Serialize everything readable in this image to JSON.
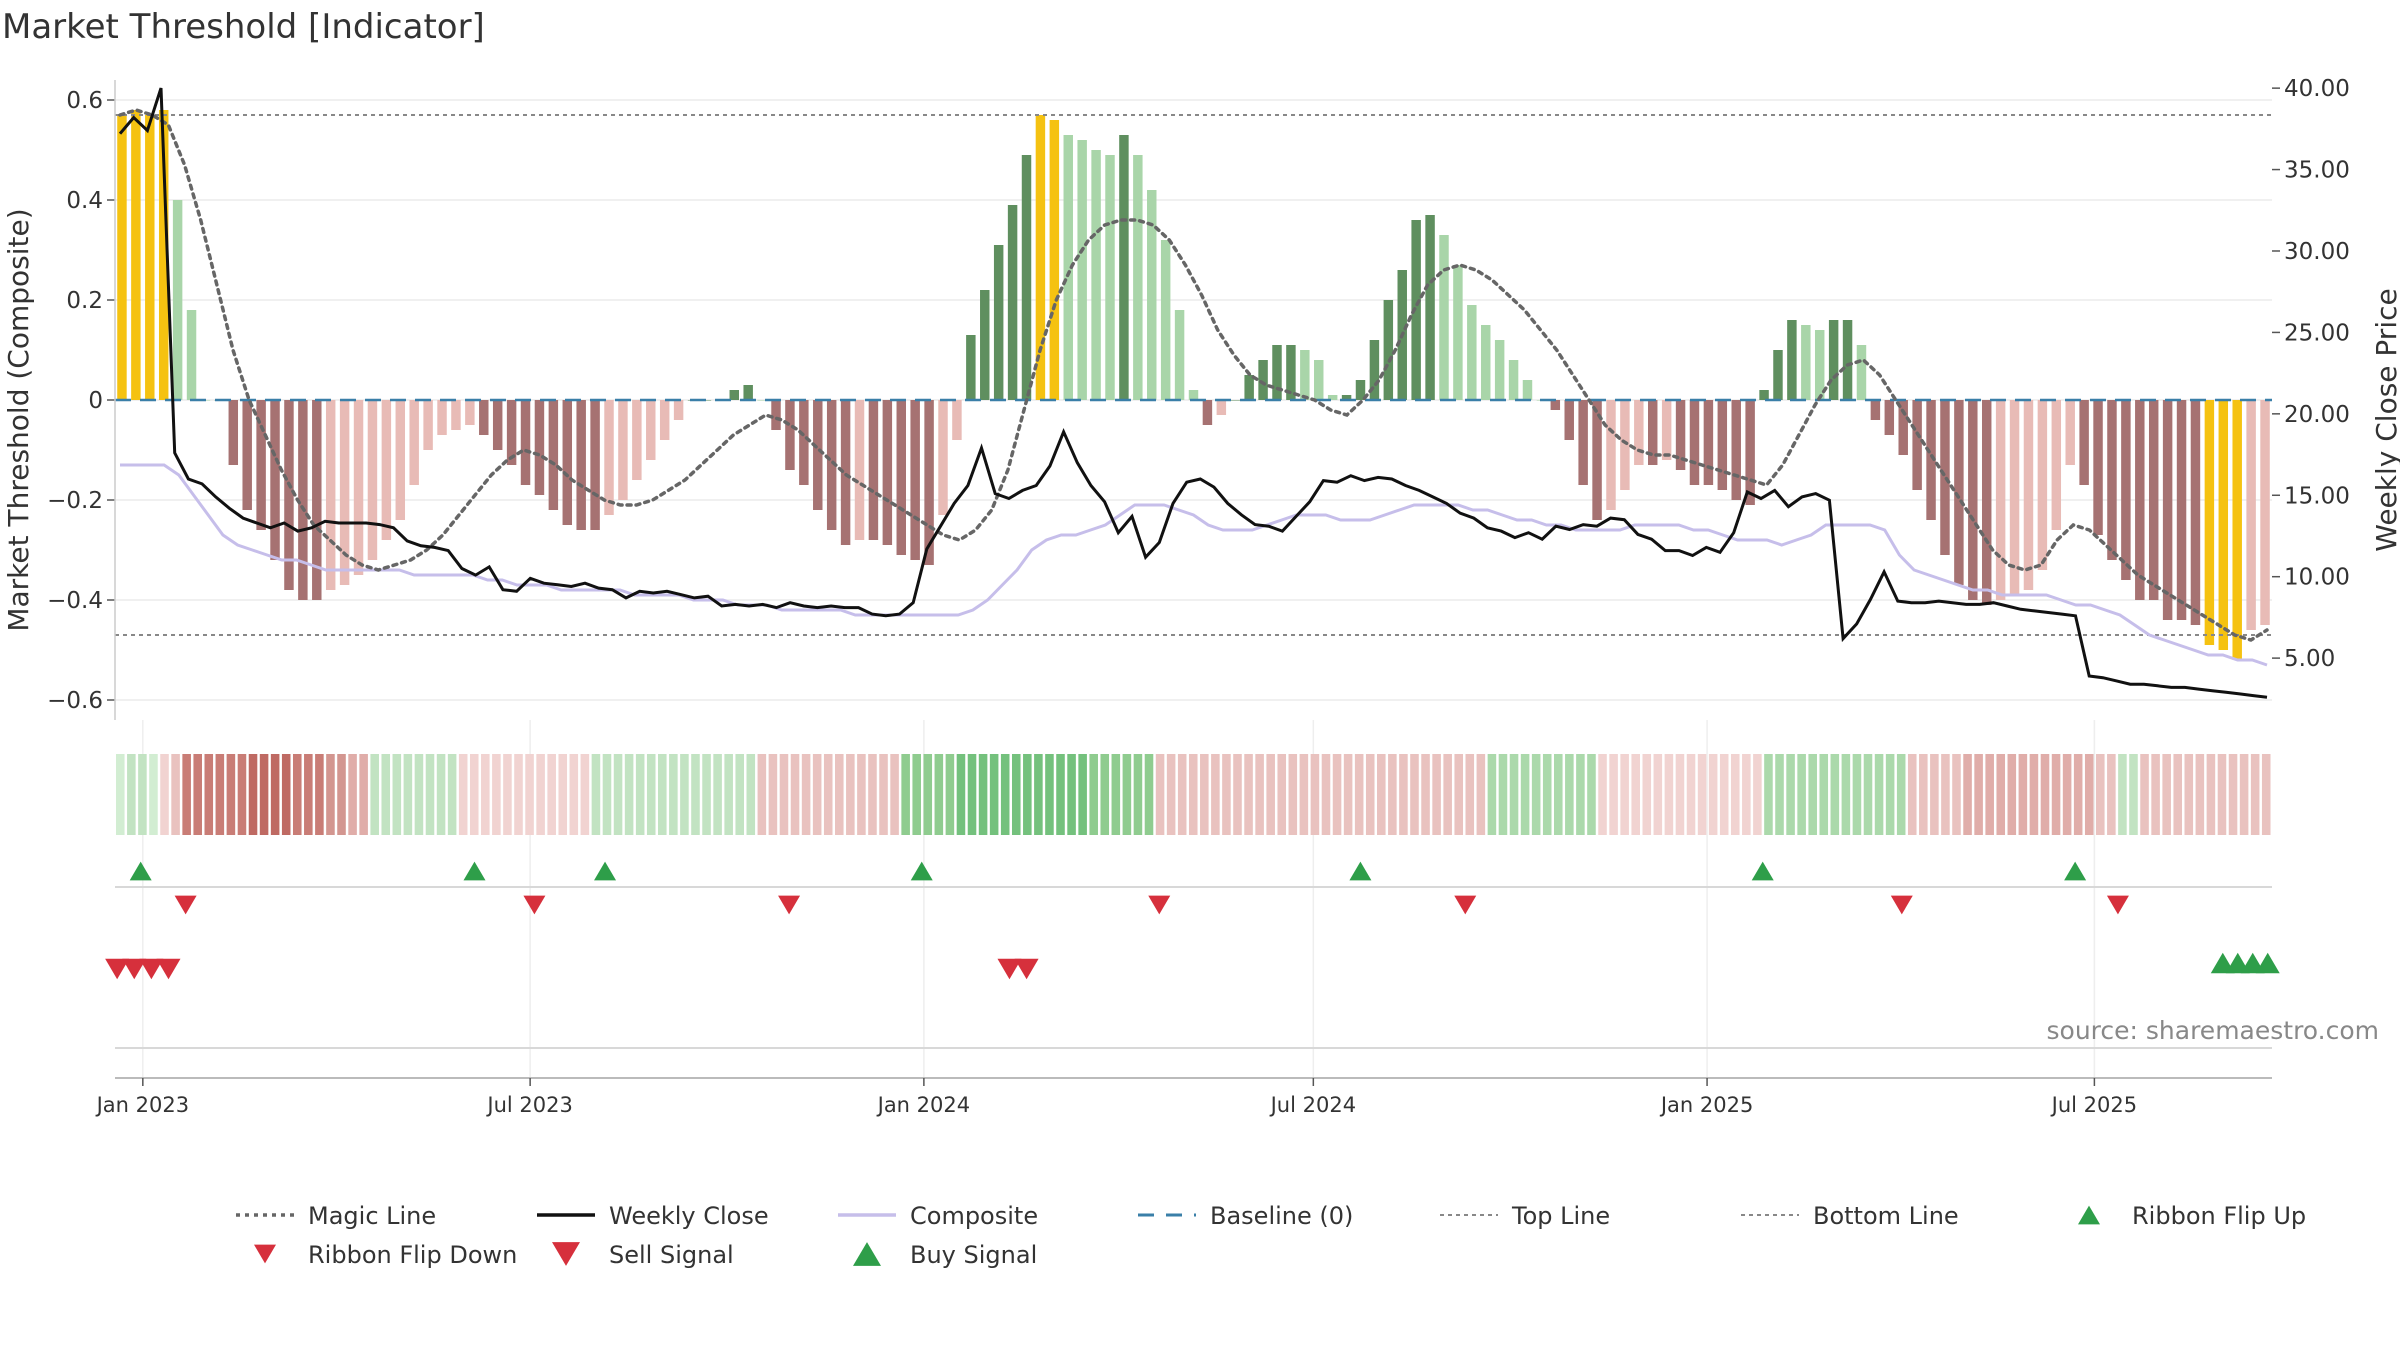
{
  "title": "Market Threshold [Indicator]",
  "source": "source: sharemaestro.com",
  "colors": {
    "extreme": "#F5C211",
    "up_strong": "#5F8F5F",
    "up_weak": "#A9D5A9",
    "down_strong": "#A67272",
    "down_weak": "#E8BBB6",
    "magic": "#666666",
    "close": "#111111",
    "composite": "#C6BEEA",
    "baseline": "#3A7FA8",
    "refline": "#888888",
    "buy": "#2E9E49",
    "sell": "#D6303C"
  },
  "chart_data": {
    "type": "bar",
    "title": "Market Threshold [Indicator]",
    "ylabel_left": "Market Threshold (Composite)",
    "ylabel_right": "Weekly Close Price",
    "ylim_left": [
      -0.64,
      0.64
    ],
    "ylim_right": [
      1.2,
      40.5
    ],
    "yticks_left": [
      "0.6",
      "0.4",
      "0.2",
      "0",
      "−0.2",
      "−0.4",
      "−0.6"
    ],
    "yticks_left_values": [
      0.6,
      0.4,
      0.2,
      0,
      -0.2,
      -0.4,
      -0.6
    ],
    "yticks_right": [
      "40.00",
      "35.00",
      "30.00",
      "25.00",
      "20.00",
      "15.00",
      "10.00",
      "5.00"
    ],
    "yticks_right_values": [
      40,
      35,
      30,
      25,
      20,
      15,
      10,
      5
    ],
    "x_start": "2022-12-19",
    "x_end": "2025-09-22",
    "xticks": [
      {
        "label": "Jan 2023",
        "date": "2023-01-01"
      },
      {
        "label": "Jul 2023",
        "date": "2023-07-01"
      },
      {
        "label": "Jan 2024",
        "date": "2024-01-01"
      },
      {
        "label": "Jul 2024",
        "date": "2024-07-01"
      },
      {
        "label": "Jan 2025",
        "date": "2025-01-01"
      },
      {
        "label": "Jul 2025",
        "date": "2025-07-01"
      }
    ],
    "top_line": 0.57,
    "bottom_line": -0.47,
    "baseline": 0,
    "bar_values": [
      0.57,
      0.58,
      0.57,
      0.58,
      0.4,
      0.18,
      0,
      0,
      -0.13,
      -0.22,
      -0.26,
      -0.32,
      -0.38,
      -0.4,
      -0.4,
      -0.38,
      -0.37,
      -0.35,
      -0.32,
      -0.28,
      -0.24,
      -0.17,
      -0.1,
      -0.07,
      -0.06,
      -0.05,
      -0.07,
      -0.1,
      -0.13,
      -0.17,
      -0.19,
      -0.22,
      -0.25,
      -0.26,
      -0.26,
      -0.23,
      -0.2,
      -0.16,
      -0.12,
      -0.08,
      -0.04,
      0,
      0,
      0,
      0.02,
      0.03,
      0,
      -0.06,
      -0.14,
      -0.17,
      -0.22,
      -0.26,
      -0.29,
      -0.28,
      -0.28,
      -0.29,
      -0.31,
      -0.32,
      -0.33,
      -0.23,
      -0.08,
      0.13,
      0.22,
      0.31,
      0.39,
      0.49,
      0.57,
      0.56,
      0.53,
      0.52,
      0.5,
      0.49,
      0.53,
      0.49,
      0.42,
      0.32,
      0.18,
      0.02,
      -0.05,
      -0.03,
      0,
      0.05,
      0.08,
      0.11,
      0.11,
      0.1,
      0.08,
      0.01,
      0.01,
      0.04,
      0.12,
      0.2,
      0.26,
      0.36,
      0.37,
      0.33,
      0.27,
      0.19,
      0.15,
      0.12,
      0.08,
      0.04,
      0,
      -0.02,
      -0.08,
      -0.17,
      -0.24,
      -0.22,
      -0.18,
      -0.13,
      -0.13,
      -0.12,
      -0.14,
      -0.17,
      -0.17,
      -0.18,
      -0.2,
      -0.21,
      0.02,
      0.1,
      0.16,
      0.15,
      0.14,
      0.16,
      0.16,
      0.11,
      -0.04,
      -0.07,
      -0.11,
      -0.18,
      -0.24,
      -0.31,
      -0.37,
      -0.4,
      -0.41,
      -0.4,
      -0.39,
      -0.38,
      -0.34,
      -0.26,
      -0.13,
      -0.17,
      -0.27,
      -0.32,
      -0.36,
      -0.4,
      -0.4,
      -0.44,
      -0.44,
      -0.45,
      -0.49,
      -0.5,
      -0.52,
      -0.46,
      -0.45
    ],
    "series": [
      {
        "name": "Magic Line",
        "values": [
          0.57,
          0.58,
          0.57,
          0.55,
          0.47,
          0.36,
          0.23,
          0.1,
          0.0,
          -0.07,
          -0.14,
          -0.2,
          -0.25,
          -0.28,
          -0.31,
          -0.33,
          -0.34,
          -0.33,
          -0.32,
          -0.3,
          -0.27,
          -0.23,
          -0.19,
          -0.15,
          -0.12,
          -0.1,
          -0.11,
          -0.13,
          -0.16,
          -0.18,
          -0.2,
          -0.21,
          -0.21,
          -0.2,
          -0.18,
          -0.16,
          -0.13,
          -0.1,
          -0.07,
          -0.05,
          -0.03,
          -0.04,
          -0.06,
          -0.09,
          -0.12,
          -0.15,
          -0.17,
          -0.19,
          -0.21,
          -0.23,
          -0.25,
          -0.27,
          -0.28,
          -0.26,
          -0.22,
          -0.14,
          -0.02,
          0.1,
          0.2,
          0.27,
          0.32,
          0.35,
          0.36,
          0.36,
          0.35,
          0.32,
          0.27,
          0.21,
          0.14,
          0.09,
          0.05,
          0.03,
          0.02,
          0.01,
          0.0,
          -0.02,
          -0.03,
          0.0,
          0.04,
          0.1,
          0.17,
          0.23,
          0.26,
          0.27,
          0.26,
          0.24,
          0.21,
          0.18,
          0.14,
          0.1,
          0.05,
          0.0,
          -0.05,
          -0.08,
          -0.1,
          -0.11,
          -0.11,
          -0.12,
          -0.13,
          -0.14,
          -0.15,
          -0.16,
          -0.17,
          -0.13,
          -0.07,
          -0.01,
          0.04,
          0.07,
          0.08,
          0.05,
          0.0,
          -0.05,
          -0.1,
          -0.15,
          -0.2,
          -0.25,
          -0.3,
          -0.33,
          -0.34,
          -0.33,
          -0.28,
          -0.25,
          -0.26,
          -0.29,
          -0.32,
          -0.35,
          -0.37,
          -0.39,
          -0.41,
          -0.43,
          -0.45,
          -0.47,
          -0.48,
          -0.46
        ]
      },
      {
        "name": "Weekly Close",
        "values": [
          37.2,
          38.2,
          37.4,
          40.0,
          17.6,
          16.0,
          15.7,
          14.9,
          14.2,
          13.6,
          13.3,
          13.0,
          13.3,
          12.8,
          13.0,
          13.4,
          13.3,
          13.3,
          13.3,
          13.2,
          13.0,
          12.2,
          11.9,
          11.8,
          11.6,
          10.5,
          10.1,
          10.6,
          9.2,
          9.1,
          9.9,
          9.6,
          9.5,
          9.4,
          9.6,
          9.3,
          9.2,
          8.7,
          9.1,
          9.0,
          9.1,
          8.9,
          8.7,
          8.8,
          8.2,
          8.3,
          8.2,
          8.3,
          8.1,
          8.4,
          8.2,
          8.1,
          8.2,
          8.1,
          8.1,
          7.7,
          7.6,
          7.7,
          8.4,
          11.7,
          13.1,
          14.5,
          15.6,
          17.9,
          15.1,
          14.8,
          15.3,
          15.6,
          16.8,
          18.9,
          17.0,
          15.6,
          14.6,
          12.7,
          13.7,
          11.2,
          12.1,
          14.5,
          15.8,
          16.0,
          15.5,
          14.5,
          13.8,
          13.2,
          13.1,
          12.8,
          13.7,
          14.6,
          15.9,
          15.8,
          16.2,
          15.9,
          16.1,
          16.0,
          15.6,
          15.3,
          14.9,
          14.5,
          13.9,
          13.6,
          13.0,
          12.8,
          12.4,
          12.7,
          12.3,
          13.1,
          12.9,
          13.2,
          13.1,
          13.6,
          13.5,
          12.6,
          12.3,
          11.6,
          11.6,
          11.3,
          11.8,
          11.5,
          12.7,
          15.2,
          14.8,
          15.3,
          14.3,
          14.9,
          15.1,
          14.7,
          6.2,
          7.1,
          8.6,
          10.3,
          8.5,
          8.4,
          8.4,
          8.5,
          8.4,
          8.3,
          8.3,
          8.4,
          8.2,
          8.0,
          7.9,
          7.8,
          7.7,
          7.6,
          3.9,
          3.8,
          3.6,
          3.4,
          3.4,
          3.3,
          3.2,
          3.2,
          3.1,
          3.0,
          2.9,
          2.8,
          2.7,
          2.6
        ]
      },
      {
        "name": "Composite",
        "values": [
          -0.13,
          -0.13,
          -0.13,
          -0.13,
          -0.15,
          -0.19,
          -0.23,
          -0.27,
          -0.29,
          -0.3,
          -0.31,
          -0.32,
          -0.32,
          -0.33,
          -0.34,
          -0.34,
          -0.34,
          -0.34,
          -0.34,
          -0.34,
          -0.35,
          -0.35,
          -0.35,
          -0.35,
          -0.35,
          -0.36,
          -0.36,
          -0.37,
          -0.37,
          -0.37,
          -0.38,
          -0.38,
          -0.38,
          -0.38,
          -0.38,
          -0.39,
          -0.39,
          -0.39,
          -0.39,
          -0.4,
          -0.4,
          -0.4,
          -0.41,
          -0.41,
          -0.41,
          -0.42,
          -0.42,
          -0.42,
          -0.42,
          -0.42,
          -0.43,
          -0.43,
          -0.43,
          -0.43,
          -0.43,
          -0.43,
          -0.43,
          -0.43,
          -0.42,
          -0.4,
          -0.37,
          -0.34,
          -0.3,
          -0.28,
          -0.27,
          -0.27,
          -0.26,
          -0.25,
          -0.23,
          -0.21,
          -0.21,
          -0.21,
          -0.22,
          -0.23,
          -0.25,
          -0.26,
          -0.26,
          -0.26,
          -0.25,
          -0.24,
          -0.23,
          -0.23,
          -0.23,
          -0.24,
          -0.24,
          -0.24,
          -0.23,
          -0.22,
          -0.21,
          -0.21,
          -0.21,
          -0.21,
          -0.22,
          -0.22,
          -0.23,
          -0.24,
          -0.24,
          -0.25,
          -0.25,
          -0.26,
          -0.26,
          -0.26,
          -0.26,
          -0.25,
          -0.25,
          -0.25,
          -0.25,
          -0.26,
          -0.26,
          -0.27,
          -0.28,
          -0.28,
          -0.28,
          -0.29,
          -0.28,
          -0.27,
          -0.25,
          -0.25,
          -0.25,
          -0.25,
          -0.26,
          -0.31,
          -0.34,
          -0.35,
          -0.36,
          -0.37,
          -0.38,
          -0.38,
          -0.39,
          -0.39,
          -0.39,
          -0.39,
          -0.4,
          -0.41,
          -0.41,
          -0.42,
          -0.43,
          -0.45,
          -0.47,
          -0.48,
          -0.49,
          -0.5,
          -0.51,
          -0.51,
          -0.52,
          -0.52,
          -0.53
        ]
      },
      {
        "name": "Baseline (0)"
      },
      {
        "name": "Top Line"
      },
      {
        "name": "Bottom Line"
      },
      {
        "name": "Ribbon Flip Up"
      },
      {
        "name": "Ribbon Flip Down"
      },
      {
        "name": "Sell Signal"
      },
      {
        "name": "Buy Signal"
      }
    ],
    "ribbon_flip_up_dates": [
      "2022-12-31",
      "2023-06-05",
      "2023-08-05",
      "2023-12-31",
      "2024-07-23",
      "2025-01-27",
      "2025-06-22"
    ],
    "ribbon_flip_down_dates": [
      "2023-01-21",
      "2023-07-03",
      "2023-10-30",
      "2024-04-20",
      "2024-09-10",
      "2025-04-02",
      "2025-07-12"
    ],
    "sell_signal_dates": [
      "2022-12-20",
      "2022-12-28",
      "2023-01-05",
      "2023-01-13",
      "2024-02-10",
      "2024-02-18"
    ],
    "buy_signal_dates": [
      "2025-08-30",
      "2025-09-06",
      "2025-09-13",
      "2025-09-20"
    ],
    "ribbon_strength": [
      1,
      2,
      2,
      1,
      -1,
      -2,
      -5,
      -5,
      -5,
      -5,
      -5,
      -5,
      -6,
      -6,
      -6,
      -6,
      -5,
      -5,
      -5,
      -4,
      -4,
      -3,
      -3,
      2,
      2,
      2,
      2,
      2,
      2,
      2,
      2,
      -1,
      -1,
      -1,
      -1,
      -1,
      -1,
      -1,
      -1,
      -1,
      -1,
      -1,
      -1,
      2,
      2,
      2,
      2,
      2,
      2,
      2,
      2,
      2,
      2,
      2,
      2,
      2,
      2,
      2,
      -2,
      -2,
      -2,
      -2,
      -2,
      -2,
      -2,
      -2,
      -2,
      -2,
      -2,
      -2,
      -2,
      4,
      4,
      4,
      4,
      4,
      5,
      5,
      5,
      5,
      5,
      5,
      5,
      5,
      5,
      5,
      5,
      5,
      4,
      4,
      4,
      4,
      4,
      4,
      -2,
      -2,
      -2,
      -2,
      -2,
      -2,
      -2,
      -2,
      -2,
      -2,
      -2,
      -2,
      -2,
      -2,
      -2,
      -2,
      -2,
      -2,
      -2,
      -2,
      -2,
      -2,
      -2,
      -2,
      -2,
      -2,
      -2,
      -2,
      -2,
      -2,
      3,
      3,
      3,
      3,
      3,
      3,
      3,
      3,
      3,
      3,
      -1,
      -1,
      -1,
      -1,
      -1,
      -1,
      -1,
      -1,
      -1,
      -1,
      -1,
      -1,
      -1,
      -1,
      -1,
      3,
      3,
      3,
      3,
      3,
      3,
      3,
      3,
      3,
      3,
      3,
      3,
      3,
      -2,
      -2,
      -2,
      -2,
      -2,
      -3,
      -3,
      -3,
      -3,
      -3,
      -3,
      -3,
      -3,
      -3,
      -3,
      -3,
      -3,
      -2,
      -2,
      2,
      2,
      -2,
      -2,
      -2,
      -2,
      -2,
      -2,
      -2,
      -2,
      -2,
      -2,
      -2,
      -2
    ]
  },
  "legend": [
    {
      "label": "Magic Line",
      "kind": "dotted",
      "color": "#666666"
    },
    {
      "label": "Weekly Close",
      "kind": "solid",
      "color": "#111111"
    },
    {
      "label": "Composite",
      "kind": "solid",
      "color": "#C6BEEA"
    },
    {
      "label": "Baseline (0)",
      "kind": "dashed",
      "color": "#3A7FA8"
    },
    {
      "label": "Top Line",
      "kind": "dotted-thin",
      "color": "#888888"
    },
    {
      "label": "Bottom Line",
      "kind": "dotted-thin",
      "color": "#888888"
    },
    {
      "label": "Ribbon Flip Up",
      "kind": "tri-up",
      "color": "#2E9E49"
    },
    {
      "label": "Ribbon Flip Down",
      "kind": "tri-down",
      "color": "#D6303C"
    },
    {
      "label": "Sell Signal",
      "kind": "tri-down-big",
      "color": "#D6303C"
    },
    {
      "label": "Buy Signal",
      "kind": "tri-up-big",
      "color": "#2E9E49"
    }
  ]
}
